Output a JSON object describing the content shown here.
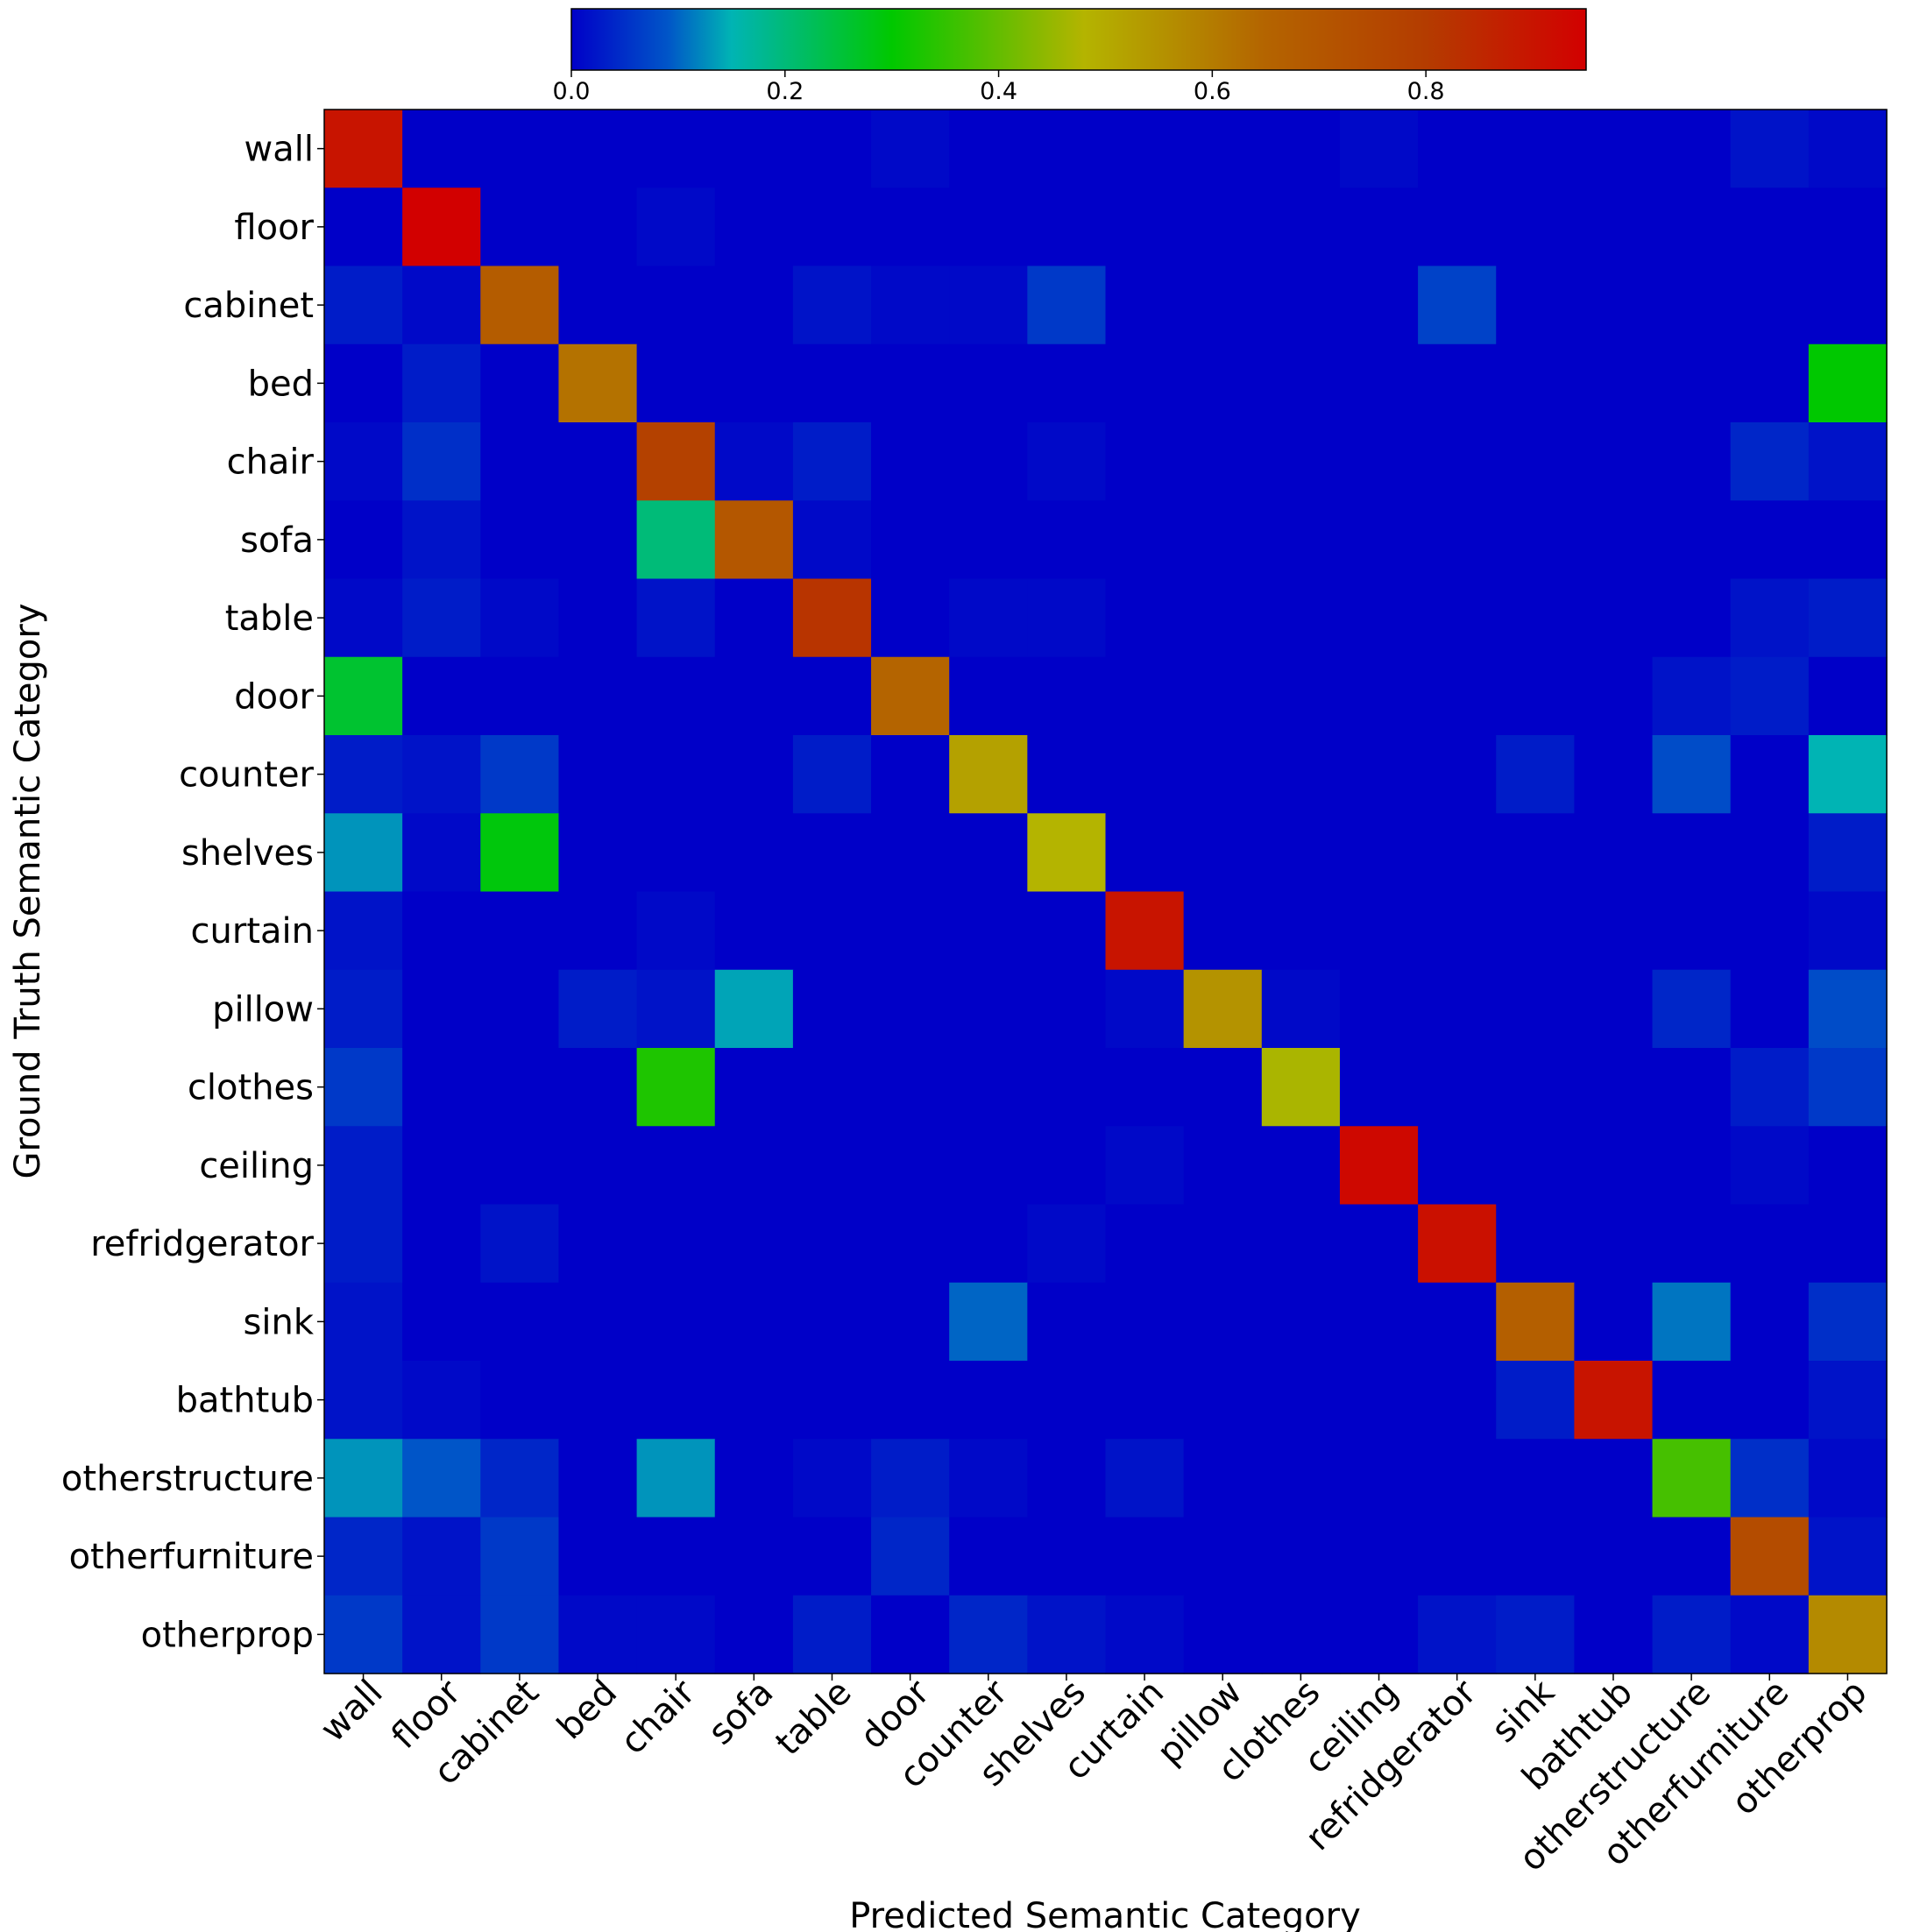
{
  "chart_data": {
    "type": "heatmap",
    "title": "",
    "xlabel": "Predicted Semantic Category",
    "ylabel": "Ground Truth Semantic Category",
    "categories": [
      "wall",
      "floor",
      "cabinet",
      "bed",
      "chair",
      "sofa",
      "table",
      "door",
      "counter",
      "shelves",
      "curtain",
      "pillow",
      "clothes",
      "ceiling",
      "refridgerator",
      "sink",
      "bathtub",
      "otherstructure",
      "otherfurniture",
      "otherprop"
    ],
    "colorbar": {
      "range": [
        0,
        0.95
      ],
      "ticks": [
        0.0,
        0.2,
        0.4,
        0.6,
        0.8
      ],
      "tick_labels": [
        "0.0",
        "0.2",
        "0.4",
        "0.6",
        "0.8"
      ],
      "placement": "top"
    },
    "colormap": [
      [
        0.0,
        "#0000c8"
      ],
      [
        0.09,
        "#0055c8"
      ],
      [
        0.15,
        "#00b4b4"
      ],
      [
        0.3,
        "#00c800"
      ],
      [
        0.48,
        "#b4b400"
      ],
      [
        0.65,
        "#b46400"
      ],
      [
        0.8,
        "#b43c00"
      ],
      [
        0.95,
        "#d20000"
      ]
    ],
    "matrix": [
      [
        0.9,
        0,
        0,
        0,
        0,
        0,
        0,
        0.01,
        0,
        0,
        0,
        0,
        0,
        0.01,
        0,
        0,
        0,
        0,
        0.02,
        0.01
      ],
      [
        0,
        0.95,
        0,
        0,
        0.01,
        0,
        0,
        0,
        0,
        0,
        0,
        0,
        0,
        0,
        0,
        0,
        0,
        0,
        0,
        0
      ],
      [
        0.03,
        0.01,
        0.68,
        0,
        0,
        0,
        0.02,
        0.01,
        0.01,
        0.06,
        0,
        0,
        0,
        0,
        0.07,
        0,
        0,
        0,
        0,
        0
      ],
      [
        0,
        0.03,
        0,
        0.62,
        0,
        0,
        0,
        0,
        0,
        0,
        0,
        0,
        0,
        0,
        0,
        0,
        0,
        0,
        0,
        0.3
      ],
      [
        0.01,
        0.05,
        0,
        0,
        0.78,
        0.01,
        0.03,
        0,
        0,
        0.01,
        0,
        0,
        0,
        0,
        0,
        0,
        0,
        0,
        0.04,
        0.02
      ],
      [
        0,
        0.02,
        0,
        0,
        0.2,
        0.7,
        0.01,
        0,
        0,
        0,
        0,
        0,
        0,
        0,
        0,
        0,
        0,
        0,
        0,
        0
      ],
      [
        0.01,
        0.03,
        0.01,
        0,
        0.02,
        0,
        0.82,
        0,
        0.01,
        0.01,
        0,
        0,
        0,
        0,
        0,
        0,
        0,
        0,
        0.02,
        0.03
      ],
      [
        0.26,
        0,
        0,
        0,
        0,
        0,
        0,
        0.65,
        0,
        0,
        0,
        0,
        0,
        0,
        0,
        0,
        0,
        0.02,
        0.03,
        0
      ],
      [
        0.03,
        0.02,
        0.06,
        0,
        0,
        0,
        0.03,
        0,
        0.52,
        0,
        0,
        0,
        0,
        0,
        0,
        0.03,
        0,
        0.08,
        0,
        0.15
      ],
      [
        0.13,
        0.01,
        0.29,
        0,
        0,
        0,
        0,
        0,
        0,
        0.48,
        0,
        0,
        0,
        0,
        0,
        0,
        0,
        0,
        0,
        0.03
      ],
      [
        0.02,
        0,
        0,
        0,
        0.01,
        0,
        0,
        0,
        0,
        0,
        0.9,
        0,
        0,
        0,
        0,
        0,
        0,
        0,
        0,
        0.01
      ],
      [
        0.03,
        0,
        0,
        0.03,
        0.02,
        0.14,
        0,
        0,
        0,
        0,
        0.01,
        0.55,
        0.01,
        0,
        0,
        0,
        0,
        0.04,
        0,
        0.08
      ],
      [
        0.06,
        0,
        0,
        0,
        0.33,
        0,
        0,
        0,
        0,
        0,
        0,
        0,
        0.47,
        0,
        0,
        0,
        0,
        0,
        0.03,
        0.06
      ],
      [
        0.03,
        0,
        0,
        0,
        0,
        0,
        0,
        0,
        0,
        0,
        0.01,
        0,
        0,
        0.93,
        0,
        0,
        0,
        0,
        0.01,
        0
      ],
      [
        0.03,
        0,
        0.02,
        0,
        0,
        0,
        0,
        0,
        0,
        0.01,
        0,
        0,
        0,
        0,
        0.91,
        0,
        0,
        0,
        0,
        0
      ],
      [
        0.02,
        0,
        0,
        0,
        0,
        0,
        0,
        0,
        0.1,
        0,
        0,
        0,
        0,
        0,
        0,
        0.67,
        0,
        0.11,
        0,
        0.05
      ],
      [
        0.02,
        0.01,
        0,
        0,
        0,
        0,
        0,
        0,
        0,
        0,
        0,
        0,
        0,
        0,
        0,
        0.03,
        0.9,
        0,
        0,
        0.02
      ],
      [
        0.13,
        0.09,
        0.04,
        0,
        0.13,
        0,
        0.01,
        0.03,
        0.01,
        0,
        0.02,
        0,
        0,
        0,
        0,
        0,
        0,
        0.37,
        0.05,
        0.01
      ],
      [
        0.04,
        0.02,
        0.06,
        0,
        0,
        0,
        0,
        0.04,
        0,
        0,
        0,
        0,
        0,
        0,
        0,
        0,
        0,
        0,
        0.74,
        0.02
      ],
      [
        0.06,
        0.02,
        0.06,
        0.01,
        0.01,
        0,
        0.03,
        0,
        0.04,
        0.02,
        0.01,
        0,
        0,
        0,
        0.02,
        0.03,
        0,
        0.03,
        0.01,
        0.57
      ]
    ]
  }
}
